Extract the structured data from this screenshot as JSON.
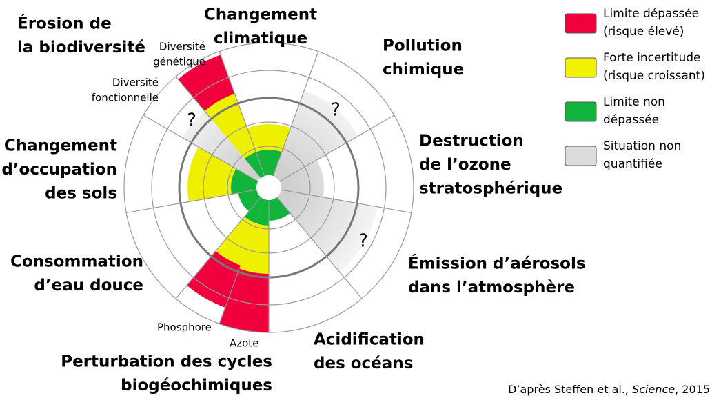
{
  "boundaries": [
    {
      "label": [
        "Changement",
        "climatique"
      ]
    },
    {
      "label": [
        "Pollution",
        "chimique"
      ]
    },
    {
      "label": [
        "Destruction",
        "de l’ozone",
        "stratosphérique"
      ]
    },
    {
      "label": [
        "Émission d’aérosols",
        "dans l’atmosphère"
      ]
    },
    {
      "label": [
        "Acidification",
        "des océans"
      ]
    },
    {
      "label": [
        "Perturbation des cycles",
        "biogéochimiques"
      ]
    },
    {
      "label": [
        "Consommation",
        "d’eau douce"
      ]
    },
    {
      "label": [
        "Changement",
        "d’occupation",
        "des sols"
      ]
    },
    {
      "label": [
        "Érosion de",
        "la biodiversité"
      ]
    }
  ],
  "sublabels": [
    {
      "label": [
        "Diversité",
        "génétique"
      ]
    },
    {
      "label": [
        "Diversité",
        "fonctionnelle"
      ]
    },
    {
      "label": [
        "Phosphore"
      ]
    },
    {
      "label": [
        "Azote"
      ]
    }
  ],
  "question_marks": [
    "?",
    "?",
    "?"
  ],
  "legend": [
    {
      "label": [
        "Limite dépassée",
        "(risque élevé)"
      ],
      "color": "#f0003c"
    },
    {
      "label": [
        "Forte incertitude",
        "(risque croissant)"
      ],
      "color": "#f2f200"
    },
    {
      "label": [
        "Limite non",
        "dépassée"
      ],
      "color": "#12b43c"
    },
    {
      "label": [
        "Situation non",
        "quantifiée"
      ],
      "color": "#dcdcdc"
    }
  ],
  "credit": {
    "text": "D’après Steffen et al., ",
    "journal": "Science",
    "year": ", 2015"
  }
}
